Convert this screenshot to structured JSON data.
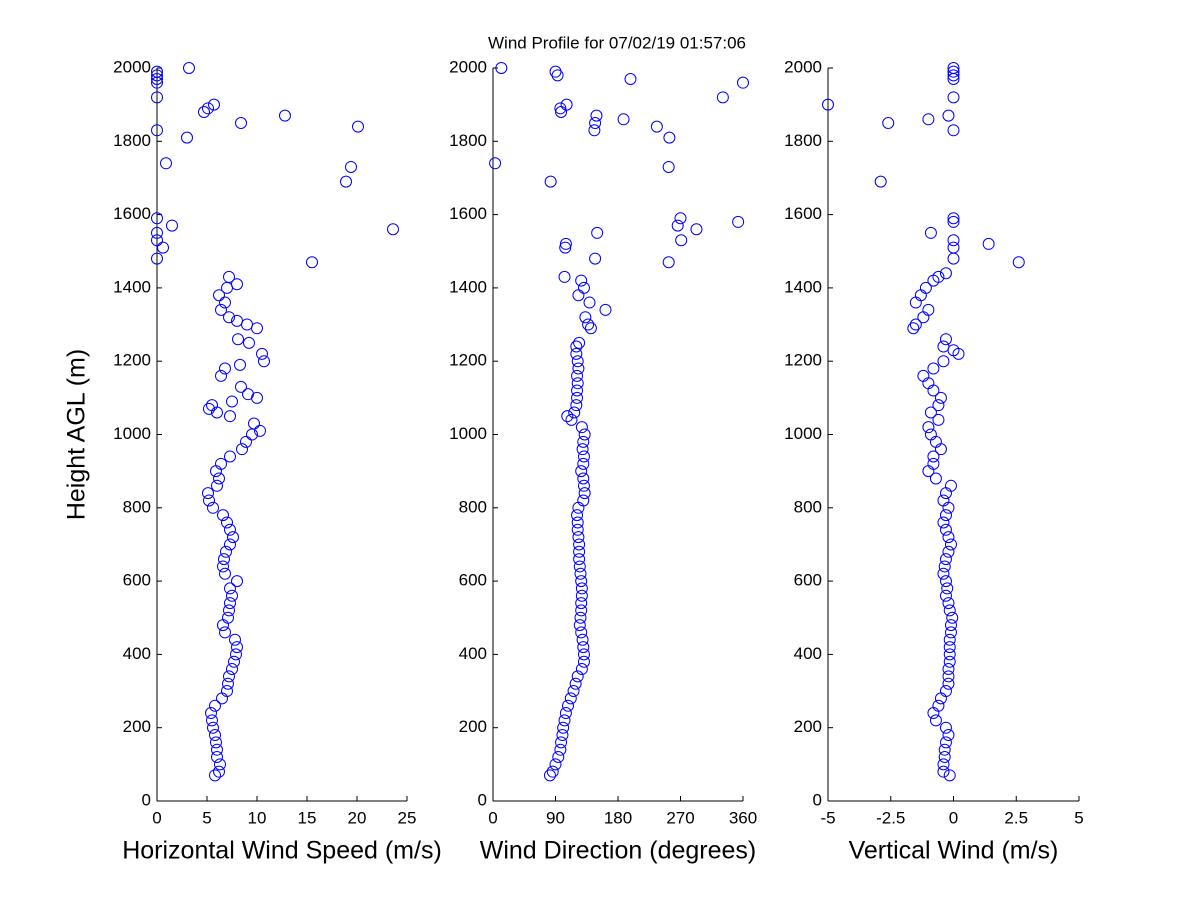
{
  "title": "Wind Profile for  07/02/19 01:57:06",
  "chart_data": [
    {
      "type": "scatter",
      "xlabel": "Horizontal Wind Speed (m/s)",
      "ylabel": "Height AGL (m)",
      "color": "#0000ff",
      "xlim": [
        0,
        25
      ],
      "xticks": [
        0,
        5,
        10,
        15,
        20,
        25
      ],
      "ylim": [
        0,
        2000
      ],
      "yticks": [
        0,
        200,
        400,
        600,
        800,
        1000,
        1200,
        1400,
        1600,
        1800,
        2000
      ],
      "x": [
        5.8,
        6.2,
        6.3,
        6.0,
        6.0,
        5.9,
        5.8,
        5.6,
        5.5,
        5.4,
        5.8,
        6.5,
        7.0,
        7.1,
        7.2,
        7.5,
        7.7,
        7.9,
        8.0,
        7.8,
        6.8,
        6.6,
        7.1,
        7.2,
        7.3,
        7.5,
        7.3,
        8.0,
        6.8,
        6.6,
        6.7,
        6.9,
        7.3,
        7.6,
        7.3,
        7.0,
        6.6,
        5.6,
        5.2,
        5.1,
        6.0,
        6.2,
        5.9,
        6.4,
        7.3,
        8.5,
        8.9,
        9.5,
        10.3,
        9.7,
        7.3,
        6.0,
        5.2,
        5.5,
        7.5,
        10.0,
        9.1,
        8.4,
        6.4,
        6.8,
        8.3,
        10.7,
        10.5,
        9.2,
        8.1,
        10.0,
        9.0,
        8.0,
        7.2,
        6.4,
        6.8,
        6.2,
        7.0,
        8.0,
        7.2,
        15.5,
        0,
        0.6,
        0,
        0,
        23.6,
        1.5,
        0,
        18.9,
        19.4,
        0.9,
        3.0,
        0,
        20.1,
        8.4,
        12.8,
        4.7,
        5.1,
        5.7,
        0,
        0,
        0,
        0,
        0,
        3.2
      ],
      "y": [
        70,
        80,
        100,
        120,
        140,
        160,
        180,
        200,
        220,
        240,
        260,
        280,
        300,
        320,
        340,
        360,
        380,
        400,
        420,
        440,
        460,
        480,
        500,
        520,
        540,
        560,
        580,
        600,
        620,
        640,
        660,
        680,
        700,
        720,
        740,
        760,
        780,
        800,
        820,
        840,
        860,
        880,
        900,
        920,
        940,
        960,
        980,
        1000,
        1010,
        1030,
        1050,
        1060,
        1070,
        1080,
        1090,
        1100,
        1110,
        1130,
        1160,
        1180,
        1190,
        1200,
        1220,
        1250,
        1260,
        1290,
        1300,
        1310,
        1320,
        1340,
        1360,
        1380,
        1400,
        1410,
        1430,
        1470,
        1480,
        1510,
        1530,
        1550,
        1560,
        1570,
        1590,
        1690,
        1730,
        1740,
        1810,
        1830,
        1840,
        1850,
        1870,
        1880,
        1890,
        1900,
        1920,
        1960,
        1970,
        1980,
        1990,
        2000
      ]
    },
    {
      "type": "scatter",
      "xlabel": "Wind Direction (degrees)",
      "color": "#0000ff",
      "xlim": [
        0,
        360
      ],
      "xticks": [
        0,
        90,
        180,
        270,
        360
      ],
      "ylim": [
        0,
        2000
      ],
      "yticks": [
        0,
        200,
        400,
        600,
        800,
        1000,
        1200,
        1400,
        1600,
        1800,
        2000
      ],
      "x": [
        82,
        86,
        90,
        94,
        97,
        98,
        100,
        101,
        103,
        105,
        108,
        112,
        116,
        119,
        122,
        128,
        131,
        131,
        130,
        129,
        127,
        125,
        126,
        127,
        127,
        128,
        128,
        127,
        126,
        125,
        124,
        124,
        124,
        123,
        122,
        122,
        121,
        123,
        130,
        132,
        131,
        130,
        127,
        130,
        131,
        129,
        130,
        132,
        128,
        113,
        107,
        117,
        120,
        121,
        121,
        122,
        121,
        123,
        122,
        120,
        120,
        124,
        141,
        137,
        133,
        162,
        139,
        123,
        131,
        127,
        103,
        253,
        147,
        104,
        105,
        271,
        150,
        293,
        266,
        353,
        270,
        83,
        253,
        3,
        254,
        146,
        236,
        147,
        188,
        149,
        98,
        97,
        106,
        331,
        360,
        198,
        93,
        90,
        12
      ],
      "y": [
        70,
        80,
        100,
        120,
        140,
        160,
        180,
        200,
        220,
        240,
        260,
        280,
        300,
        320,
        340,
        360,
        380,
        400,
        420,
        440,
        460,
        480,
        500,
        520,
        540,
        560,
        580,
        600,
        620,
        640,
        660,
        680,
        700,
        720,
        740,
        760,
        780,
        800,
        820,
        840,
        860,
        880,
        900,
        920,
        940,
        960,
        980,
        1000,
        1020,
        1040,
        1050,
        1060,
        1080,
        1100,
        1120,
        1140,
        1160,
        1180,
        1200,
        1220,
        1240,
        1250,
        1290,
        1300,
        1320,
        1340,
        1360,
        1380,
        1400,
        1420,
        1430,
        1470,
        1480,
        1510,
        1520,
        1530,
        1550,
        1560,
        1570,
        1580,
        1590,
        1690,
        1730,
        1740,
        1810,
        1830,
        1840,
        1850,
        1860,
        1870,
        1880,
        1890,
        1900,
        1920,
        1960,
        1970,
        1980,
        1990,
        2000
      ]
    },
    {
      "type": "scatter",
      "xlabel": "Vertical Wind (m/s)",
      "color": "#0000ff",
      "xlim": [
        -5,
        5
      ],
      "xticks": [
        -5,
        {
          "value": -2.5,
          "label": "-2.5"
        },
        0,
        {
          "value": 2.5,
          "label": "2.5"
        },
        5
      ],
      "ylim": [
        0,
        2000
      ],
      "yticks": [
        0,
        200,
        400,
        600,
        800,
        1000,
        1200,
        1400,
        1600,
        1800,
        2000
      ],
      "x": [
        -0.15,
        -0.4,
        -0.4,
        -0.35,
        -0.35,
        -0.3,
        -0.2,
        -0.3,
        -0.7,
        -0.8,
        -0.6,
        -0.5,
        -0.3,
        -0.2,
        -0.2,
        -0.2,
        -0.15,
        -0.15,
        -0.15,
        -0.15,
        -0.1,
        -0.1,
        -0.05,
        -0.15,
        -0.2,
        -0.3,
        -0.25,
        -0.3,
        -0.4,
        -0.35,
        -0.3,
        -0.2,
        -0.1,
        -0.2,
        -0.3,
        -0.4,
        -0.3,
        -0.2,
        -0.4,
        -0.3,
        -0.1,
        -0.7,
        -1.0,
        -0.8,
        -0.8,
        -0.5,
        -0.7,
        -0.9,
        -1.0,
        -0.6,
        -0.9,
        -0.6,
        -0.5,
        -0.8,
        -1.0,
        -1.2,
        -0.8,
        -0.4,
        0.2,
        0,
        -0.4,
        -0.3,
        -1.6,
        -1.5,
        -1.2,
        -1.0,
        -1.5,
        -1.3,
        -1.1,
        -0.8,
        -0.6,
        -0.3,
        2.6,
        0,
        0,
        1.4,
        0,
        -0.9,
        0,
        0,
        -2.9,
        0,
        -2.6,
        -1.0,
        -0.2,
        -5,
        0,
        0,
        0,
        0,
        0
      ],
      "y": [
        70,
        80,
        100,
        120,
        140,
        160,
        180,
        200,
        220,
        240,
        260,
        280,
        300,
        320,
        340,
        360,
        380,
        400,
        420,
        440,
        460,
        480,
        500,
        520,
        540,
        560,
        580,
        600,
        620,
        640,
        660,
        680,
        700,
        720,
        740,
        760,
        780,
        800,
        820,
        840,
        860,
        880,
        900,
        920,
        940,
        960,
        980,
        1000,
        1020,
        1040,
        1060,
        1080,
        1100,
        1120,
        1140,
        1160,
        1180,
        1200,
        1220,
        1230,
        1240,
        1260,
        1290,
        1300,
        1320,
        1340,
        1360,
        1380,
        1400,
        1420,
        1430,
        1440,
        1470,
        1480,
        1510,
        1520,
        1530,
        1550,
        1580,
        1590,
        1690,
        1830,
        1850,
        1860,
        1870,
        1900,
        1920,
        1970,
        1980,
        1990,
        2000
      ]
    }
  ]
}
